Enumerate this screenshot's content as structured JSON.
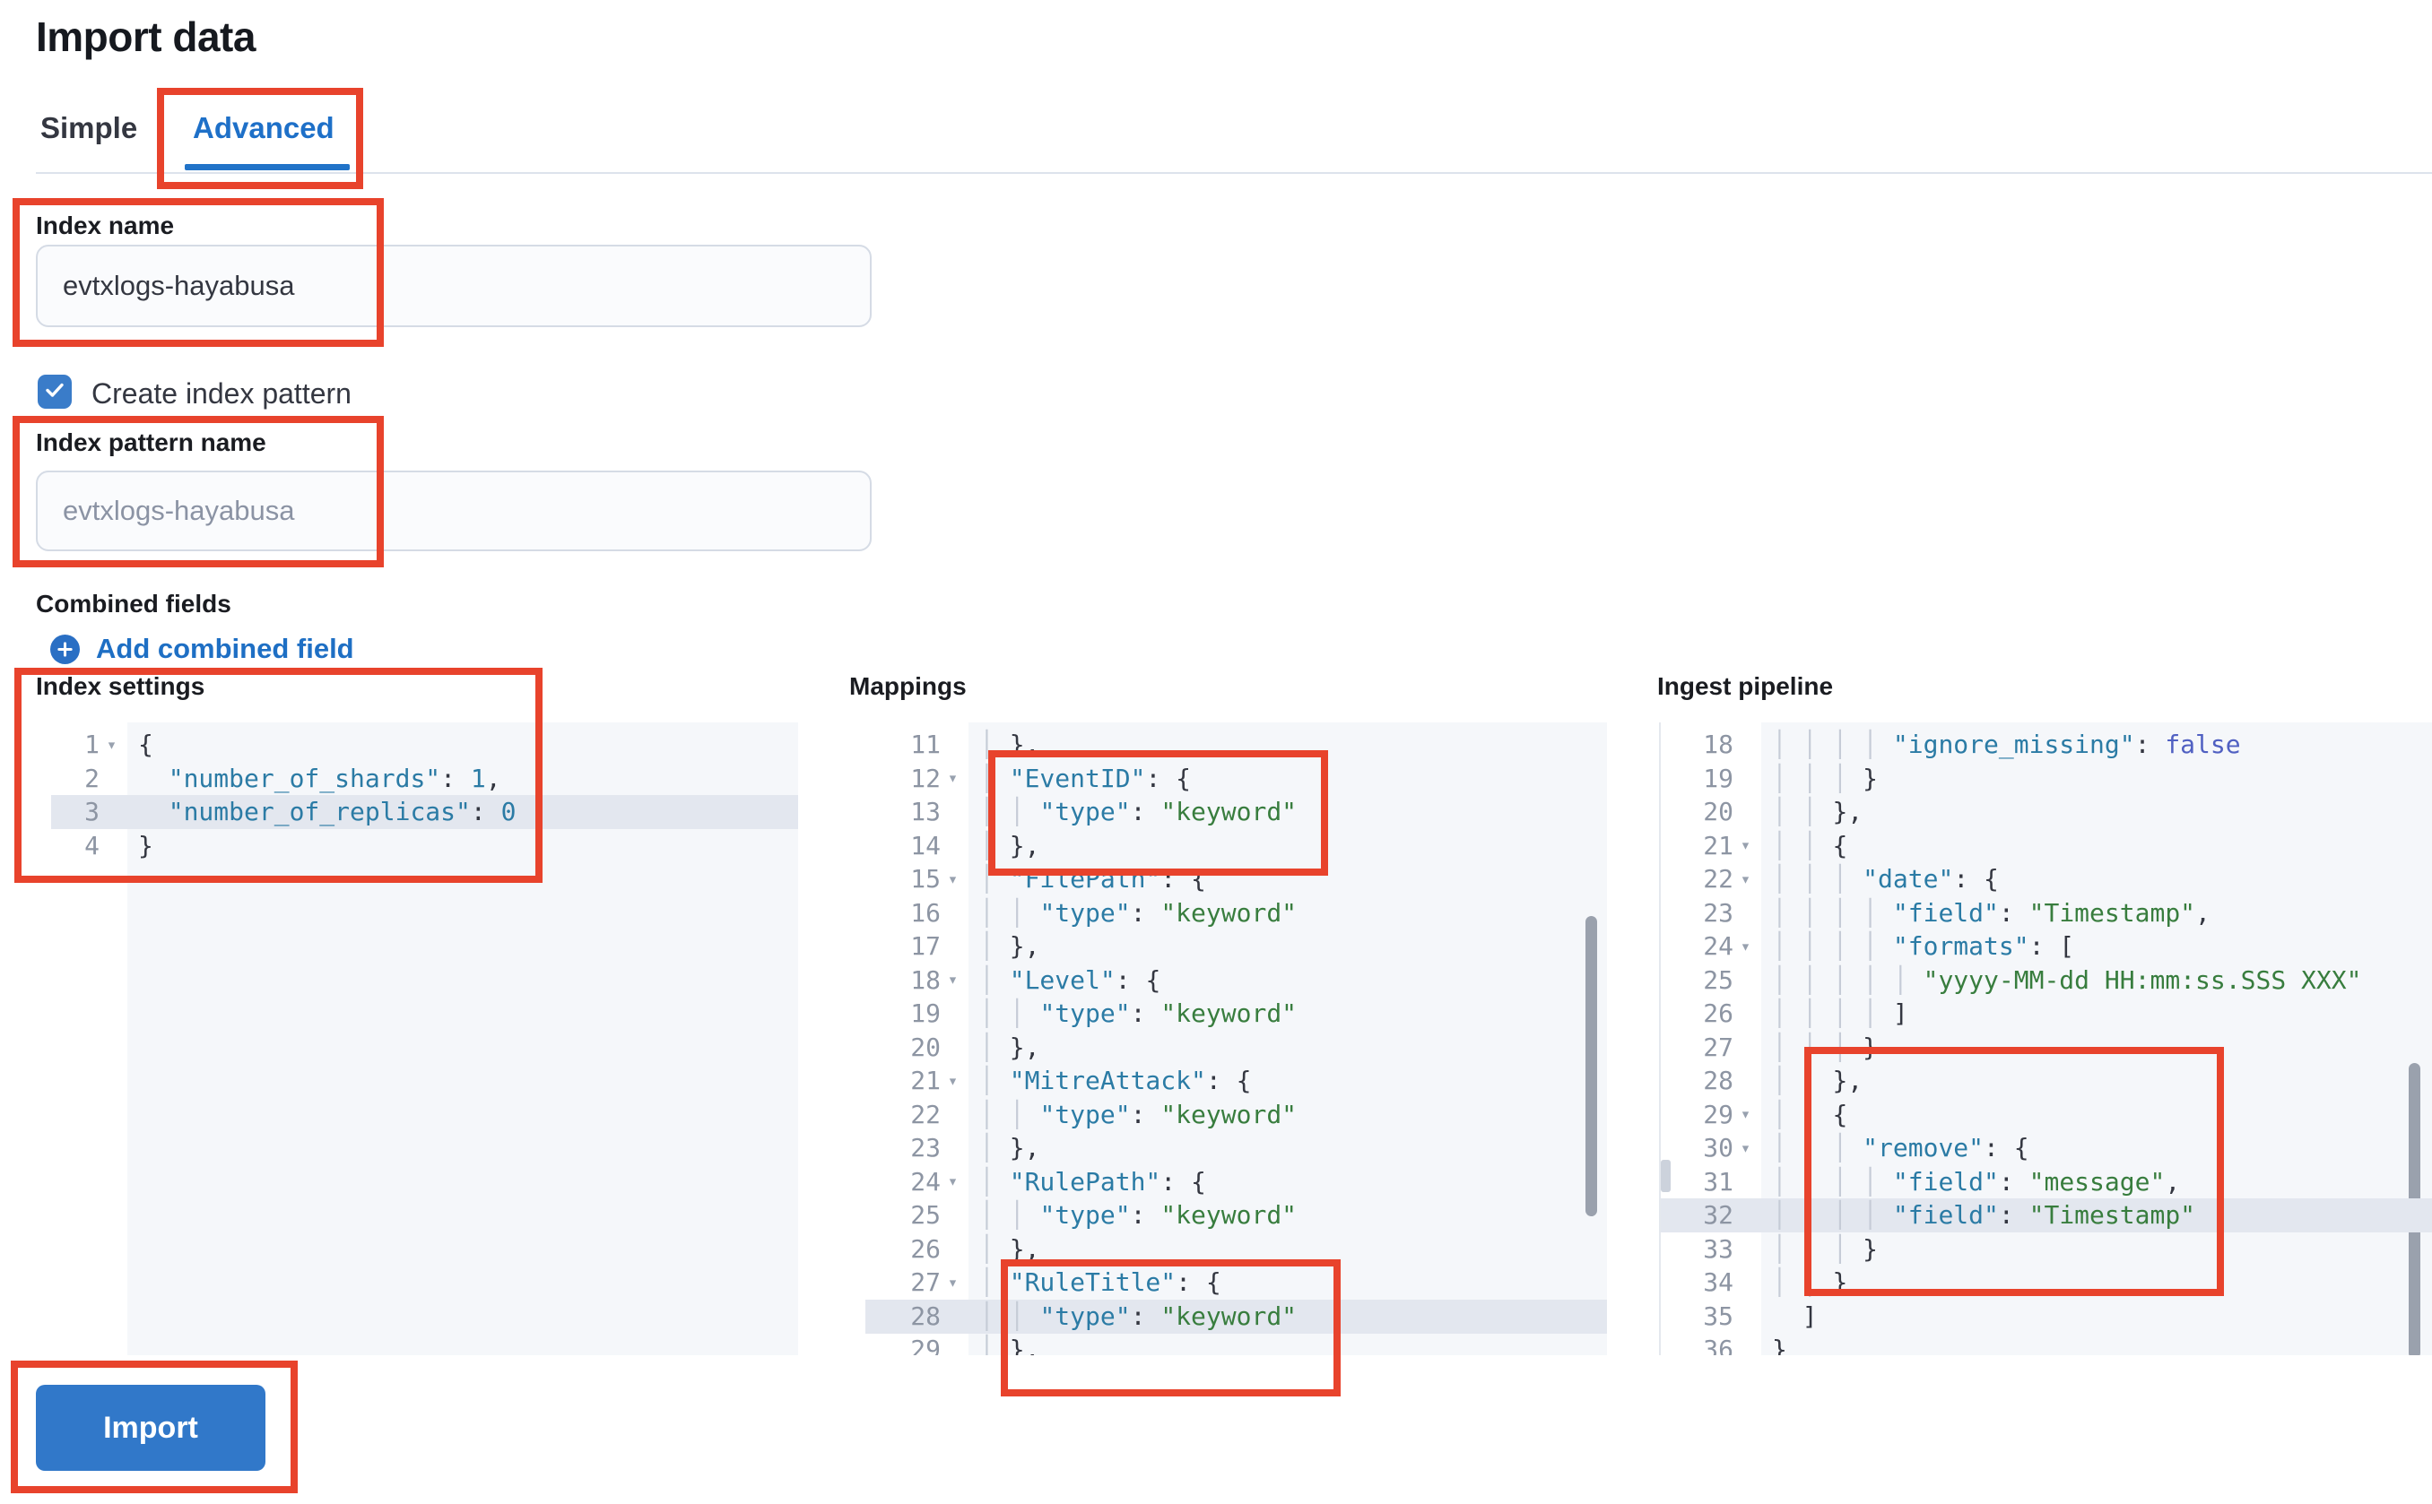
{
  "page": {
    "title": "Import data"
  },
  "tabs": {
    "simple": "Simple",
    "advanced": "Advanced",
    "selected": "Advanced"
  },
  "colors": {
    "accent_blue": "#1e70c8",
    "annotation_red": "#e8432c",
    "checkbox_blue": "#3a7cc9",
    "button_blue": "#3178c9",
    "editor_bg": "#f5f7fa",
    "editor_highlight": "#e3e7ef",
    "code_key": "#2b7ba5",
    "code_string": "#387d3e",
    "code_bool": "#5060c2"
  },
  "form": {
    "index_name": {
      "label": "Index name",
      "value": "evtxlogs-hayabusa"
    },
    "create_index_pattern": {
      "label": "Create index pattern",
      "checked": true
    },
    "index_pattern_name": {
      "label": "Index pattern name",
      "placeholder": "evtxlogs-hayabusa",
      "value": ""
    },
    "combined_fields": {
      "label": "Combined fields",
      "add_link": "Add combined field"
    }
  },
  "import_button": {
    "label": "Import"
  },
  "editors": {
    "fold_glyph": "▾",
    "index_settings": {
      "label": "Index settings",
      "lines": [
        {
          "n": "1",
          "fold": true,
          "hl": false,
          "tokens": [
            [
              "p",
              "{"
            ]
          ]
        },
        {
          "n": "2",
          "fold": false,
          "hl": false,
          "tokens": [
            [
              "w",
              "  "
            ],
            [
              "k",
              "\"number_of_shards\""
            ],
            [
              "p",
              ": "
            ],
            [
              "k",
              "1"
            ],
            [
              "p",
              ","
            ]
          ]
        },
        {
          "n": "3",
          "fold": false,
          "hl": true,
          "tokens": [
            [
              "w",
              "  "
            ],
            [
              "k",
              "\"number_of_replicas\""
            ],
            [
              "p",
              ": "
            ],
            [
              "k",
              "0"
            ]
          ]
        },
        {
          "n": "4",
          "fold": false,
          "hl": false,
          "tokens": [
            [
              "p",
              "}"
            ]
          ]
        }
      ]
    },
    "mappings": {
      "label": "Mappings",
      "lines": [
        {
          "n": "11",
          "fold": false,
          "hl": false,
          "tokens": [
            [
              "g",
              "│ "
            ],
            [
              "p",
              "},"
            ]
          ]
        },
        {
          "n": "12",
          "fold": true,
          "hl": false,
          "tokens": [
            [
              "g",
              "│ "
            ],
            [
              "k",
              "\"EventID\""
            ],
            [
              "p",
              ": {"
            ]
          ]
        },
        {
          "n": "13",
          "fold": false,
          "hl": false,
          "tokens": [
            [
              "g",
              "│ "
            ],
            [
              "g",
              "│ "
            ],
            [
              "k",
              "\"type\""
            ],
            [
              "p",
              ": "
            ],
            [
              "s",
              "\"keyword\""
            ]
          ]
        },
        {
          "n": "14",
          "fold": false,
          "hl": false,
          "tokens": [
            [
              "g",
              "│ "
            ],
            [
              "p",
              "},"
            ]
          ]
        },
        {
          "n": "15",
          "fold": true,
          "hl": false,
          "tokens": [
            [
              "g",
              "│ "
            ],
            [
              "k",
              "\"FilePath\""
            ],
            [
              "p",
              ": {"
            ]
          ]
        },
        {
          "n": "16",
          "fold": false,
          "hl": false,
          "tokens": [
            [
              "g",
              "│ "
            ],
            [
              "g",
              "│ "
            ],
            [
              "k",
              "\"type\""
            ],
            [
              "p",
              ": "
            ],
            [
              "s",
              "\"keyword\""
            ]
          ]
        },
        {
          "n": "17",
          "fold": false,
          "hl": false,
          "tokens": [
            [
              "g",
              "│ "
            ],
            [
              "p",
              "},"
            ]
          ]
        },
        {
          "n": "18",
          "fold": true,
          "hl": false,
          "tokens": [
            [
              "g",
              "│ "
            ],
            [
              "k",
              "\"Level\""
            ],
            [
              "p",
              ": {"
            ]
          ]
        },
        {
          "n": "19",
          "fold": false,
          "hl": false,
          "tokens": [
            [
              "g",
              "│ "
            ],
            [
              "g",
              "│ "
            ],
            [
              "k",
              "\"type\""
            ],
            [
              "p",
              ": "
            ],
            [
              "s",
              "\"keyword\""
            ]
          ]
        },
        {
          "n": "20",
          "fold": false,
          "hl": false,
          "tokens": [
            [
              "g",
              "│ "
            ],
            [
              "p",
              "},"
            ]
          ]
        },
        {
          "n": "21",
          "fold": true,
          "hl": false,
          "tokens": [
            [
              "g",
              "│ "
            ],
            [
              "k",
              "\"MitreAttack\""
            ],
            [
              "p",
              ": {"
            ]
          ]
        },
        {
          "n": "22",
          "fold": false,
          "hl": false,
          "tokens": [
            [
              "g",
              "│ "
            ],
            [
              "g",
              "│ "
            ],
            [
              "k",
              "\"type\""
            ],
            [
              "p",
              ": "
            ],
            [
              "s",
              "\"keyword\""
            ]
          ]
        },
        {
          "n": "23",
          "fold": false,
          "hl": false,
          "tokens": [
            [
              "g",
              "│ "
            ],
            [
              "p",
              "},"
            ]
          ]
        },
        {
          "n": "24",
          "fold": true,
          "hl": false,
          "tokens": [
            [
              "g",
              "│ "
            ],
            [
              "k",
              "\"RulePath\""
            ],
            [
              "p",
              ": {"
            ]
          ]
        },
        {
          "n": "25",
          "fold": false,
          "hl": false,
          "tokens": [
            [
              "g",
              "│ "
            ],
            [
              "g",
              "│ "
            ],
            [
              "k",
              "\"type\""
            ],
            [
              "p",
              ": "
            ],
            [
              "s",
              "\"keyword\""
            ]
          ]
        },
        {
          "n": "26",
          "fold": false,
          "hl": false,
          "tokens": [
            [
              "g",
              "│ "
            ],
            [
              "p",
              "},"
            ]
          ]
        },
        {
          "n": "27",
          "fold": true,
          "hl": false,
          "tokens": [
            [
              "g",
              "│ "
            ],
            [
              "k",
              "\"RuleTitle\""
            ],
            [
              "p",
              ": {"
            ]
          ]
        },
        {
          "n": "28",
          "fold": false,
          "hl": true,
          "tokens": [
            [
              "g",
              "│ "
            ],
            [
              "g",
              "│ "
            ],
            [
              "k",
              "\"type\""
            ],
            [
              "p",
              ": "
            ],
            [
              "s",
              "\"keyword\""
            ]
          ]
        },
        {
          "n": "29",
          "fold": false,
          "hl": false,
          "tokens": [
            [
              "g",
              "│ "
            ],
            [
              "p",
              "},"
            ]
          ]
        }
      ]
    },
    "ingest_pipeline": {
      "label": "Ingest pipeline",
      "lines": [
        {
          "n": "18",
          "fold": false,
          "hl": false,
          "tokens": [
            [
              "g",
              "│ "
            ],
            [
              "g",
              "│ "
            ],
            [
              "g",
              "│ "
            ],
            [
              "g",
              "│ "
            ],
            [
              "k",
              "\"ignore_missing\""
            ],
            [
              "p",
              ": "
            ],
            [
              "b",
              "false"
            ]
          ]
        },
        {
          "n": "19",
          "fold": false,
          "hl": false,
          "tokens": [
            [
              "g",
              "│ "
            ],
            [
              "g",
              "│ "
            ],
            [
              "g",
              "│ "
            ],
            [
              "p",
              "}"
            ]
          ]
        },
        {
          "n": "20",
          "fold": false,
          "hl": false,
          "tokens": [
            [
              "g",
              "│ "
            ],
            [
              "g",
              "│ "
            ],
            [
              "p",
              "},"
            ]
          ]
        },
        {
          "n": "21",
          "fold": true,
          "hl": false,
          "tokens": [
            [
              "g",
              "│ "
            ],
            [
              "g",
              "│ "
            ],
            [
              "p",
              "{"
            ]
          ]
        },
        {
          "n": "22",
          "fold": true,
          "hl": false,
          "tokens": [
            [
              "g",
              "│ "
            ],
            [
              "g",
              "│ "
            ],
            [
              "g",
              "│ "
            ],
            [
              "k",
              "\"date\""
            ],
            [
              "p",
              ": {"
            ]
          ]
        },
        {
          "n": "23",
          "fold": false,
          "hl": false,
          "tokens": [
            [
              "g",
              "│ "
            ],
            [
              "g",
              "│ "
            ],
            [
              "g",
              "│ "
            ],
            [
              "g",
              "│ "
            ],
            [
              "k",
              "\"field\""
            ],
            [
              "p",
              ": "
            ],
            [
              "s",
              "\"Timestamp\""
            ],
            [
              "p",
              ","
            ]
          ]
        },
        {
          "n": "24",
          "fold": true,
          "hl": false,
          "tokens": [
            [
              "g",
              "│ "
            ],
            [
              "g",
              "│ "
            ],
            [
              "g",
              "│ "
            ],
            [
              "g",
              "│ "
            ],
            [
              "k",
              "\"formats\""
            ],
            [
              "p",
              ": ["
            ]
          ]
        },
        {
          "n": "25",
          "fold": false,
          "hl": false,
          "tokens": [
            [
              "g",
              "│ "
            ],
            [
              "g",
              "│ "
            ],
            [
              "g",
              "│ "
            ],
            [
              "g",
              "│ "
            ],
            [
              "g",
              "│ "
            ],
            [
              "s",
              "\"yyyy-MM-dd HH:mm:ss.SSS XXX\""
            ]
          ]
        },
        {
          "n": "26",
          "fold": false,
          "hl": false,
          "tokens": [
            [
              "g",
              "│ "
            ],
            [
              "g",
              "│ "
            ],
            [
              "g",
              "│ "
            ],
            [
              "g",
              "│ "
            ],
            [
              "p",
              "]"
            ]
          ]
        },
        {
          "n": "27",
          "fold": false,
          "hl": false,
          "tokens": [
            [
              "g",
              "│ "
            ],
            [
              "g",
              "│ "
            ],
            [
              "g",
              "│ "
            ],
            [
              "p",
              "}"
            ]
          ]
        },
        {
          "n": "28",
          "fold": false,
          "hl": false,
          "tokens": [
            [
              "g",
              "│ "
            ],
            [
              "g",
              "│ "
            ],
            [
              "p",
              "},"
            ]
          ]
        },
        {
          "n": "29",
          "fold": true,
          "hl": false,
          "tokens": [
            [
              "g",
              "│ "
            ],
            [
              "g",
              "│ "
            ],
            [
              "p",
              "{"
            ]
          ]
        },
        {
          "n": "30",
          "fold": true,
          "hl": false,
          "tokens": [
            [
              "g",
              "│ "
            ],
            [
              "g",
              "│ "
            ],
            [
              "g",
              "│ "
            ],
            [
              "k",
              "\"remove\""
            ],
            [
              "p",
              ": {"
            ]
          ]
        },
        {
          "n": "31",
          "fold": false,
          "hl": false,
          "tokens": [
            [
              "g",
              "│ "
            ],
            [
              "g",
              "│ "
            ],
            [
              "g",
              "│ "
            ],
            [
              "g",
              "│ "
            ],
            [
              "k",
              "\"field\""
            ],
            [
              "p",
              ": "
            ],
            [
              "s",
              "\"message\""
            ],
            [
              "p",
              ","
            ]
          ]
        },
        {
          "n": "32",
          "fold": false,
          "hl": true,
          "tokens": [
            [
              "g",
              "│ "
            ],
            [
              "g",
              "│ "
            ],
            [
              "g",
              "│ "
            ],
            [
              "g",
              "│ "
            ],
            [
              "k",
              "\"field\""
            ],
            [
              "p",
              ": "
            ],
            [
              "s",
              "\"Timestamp\""
            ]
          ]
        },
        {
          "n": "33",
          "fold": false,
          "hl": false,
          "tokens": [
            [
              "g",
              "│ "
            ],
            [
              "g",
              "│ "
            ],
            [
              "g",
              "│ "
            ],
            [
              "p",
              "}"
            ]
          ]
        },
        {
          "n": "34",
          "fold": false,
          "hl": false,
          "tokens": [
            [
              "g",
              "│ "
            ],
            [
              "g",
              "│ "
            ],
            [
              "p",
              "}"
            ]
          ]
        },
        {
          "n": "35",
          "fold": false,
          "hl": false,
          "tokens": [
            [
              "w",
              "  "
            ],
            [
              "p",
              "]"
            ]
          ]
        },
        {
          "n": "36",
          "fold": false,
          "hl": false,
          "tokens": [
            [
              "p",
              "}"
            ]
          ]
        }
      ]
    }
  }
}
